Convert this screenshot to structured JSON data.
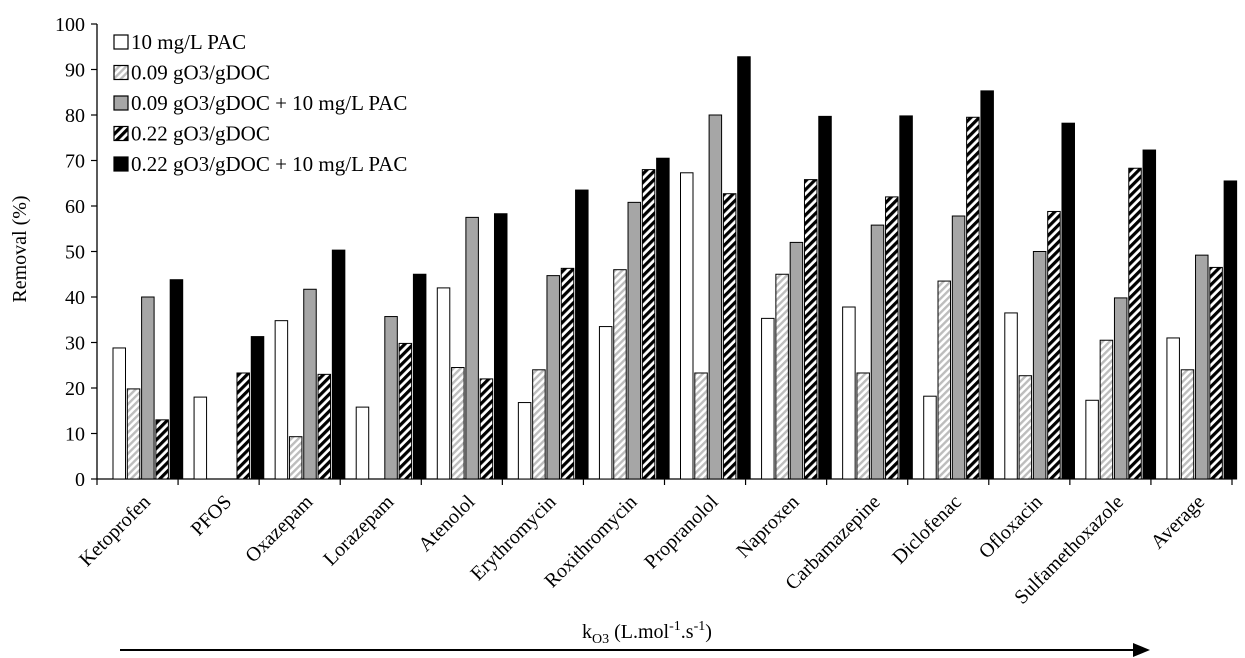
{
  "chart_data": {
    "type": "bar",
    "ylabel": "Removal (%)",
    "ylim": [
      0,
      100
    ],
    "yticks": [
      0,
      10,
      20,
      30,
      40,
      50,
      60,
      70,
      80,
      90,
      100
    ],
    "grid": false,
    "legend_position": "top-left",
    "xlabel": {
      "base": "k",
      "subscript": "O3",
      "rest": " (L.mol",
      "sup1": "-1",
      "mid": ".s",
      "sup2": "-1",
      "end": ")"
    },
    "categories": [
      "Ketoprofen",
      "PFOS",
      "Oxazepam",
      "Lorazepam",
      "Atenolol",
      "Erythromycin",
      "Roxithromycin",
      "Propranolol",
      "Naproxen",
      "Carbamazepine",
      "Diclofenac",
      "Ofloxacin",
      "Sulfamethoxazole",
      "Average"
    ],
    "series": [
      {
        "name": "10 mg/L PAC",
        "style": "white",
        "values": [
          28.8,
          18,
          34.8,
          15.8,
          42,
          16.8,
          33.5,
          67.3,
          35.3,
          37.8,
          18.2,
          36.5,
          17.3,
          31
        ]
      },
      {
        "name": "0.09 gO3/gDOC",
        "style": "light-hatch",
        "values": [
          19.8,
          0,
          9.3,
          0,
          24.5,
          24,
          46,
          23.3,
          45,
          23.3,
          43.5,
          22.7,
          30.5,
          24
        ]
      },
      {
        "name": "0.09 gO3/gDOC + 10 mg/L PAC",
        "style": "gray",
        "values": [
          40,
          0,
          41.7,
          35.7,
          57.5,
          44.7,
          60.8,
          80,
          52,
          55.8,
          57.8,
          50,
          39.8,
          49.2
        ]
      },
      {
        "name": "0.22 gO3/gDOC",
        "style": "dark-hatch",
        "values": [
          13,
          23.3,
          23,
          29.8,
          22,
          46.3,
          68,
          62.7,
          65.8,
          62,
          79.5,
          58.8,
          68.3,
          46.5
        ]
      },
      {
        "name": "0.22 gO3/gDOC + 10 mg/L PAC",
        "style": "black",
        "values": [
          43.8,
          31.3,
          50.3,
          45,
          58.3,
          63.5,
          70.5,
          92.8,
          79.7,
          79.8,
          85.3,
          78.2,
          72.3,
          65.5
        ]
      }
    ],
    "colors": {
      "white": "#ffffff",
      "gray": "#a6a6a6",
      "black": "#000000",
      "light_hatch": "#bdbdbd",
      "outline": "#000000"
    }
  }
}
